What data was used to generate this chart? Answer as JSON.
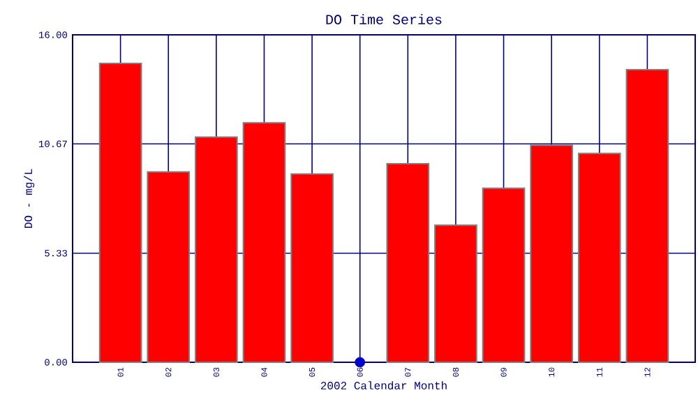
{
  "chart_data": {
    "type": "bar",
    "title": "DO Time Series",
    "xlabel": "2002 Calendar Month",
    "ylabel": "DO - mg/L",
    "categories": [
      "01",
      "02",
      "03",
      "04",
      "05",
      "06",
      "07",
      "08",
      "09",
      "10",
      "11",
      "12"
    ],
    "series": [
      {
        "color": "#ff0000",
        "values": [
          14.6,
          9.3,
          11.0,
          11.7,
          9.2,
          null,
          9.7,
          6.7,
          8.5,
          10.6,
          10.2,
          14.3
        ]
      },
      {
        "type": "scatter",
        "color": "#0000cc",
        "marker": "circle",
        "x": [
          "06"
        ],
        "values": [
          0
        ]
      }
    ],
    "ylim": [
      0,
      16
    ],
    "yticks": [
      {
        "value": 0,
        "label": "0.00"
      },
      {
        "value": 5.33,
        "label": "5.33"
      },
      {
        "value": 10.67,
        "label": "10.67"
      },
      {
        "value": 16,
        "label": "16.00"
      }
    ],
    "grid": true
  }
}
